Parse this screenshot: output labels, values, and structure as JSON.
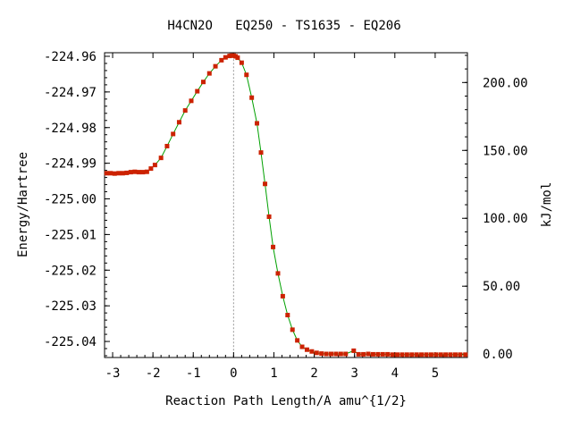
{
  "chart_data": {
    "type": "line",
    "title": "H4CN2O   EQ250 - TS1635 - EQ206",
    "xlabel": "Reaction Path Length/A amu^{1/2}",
    "ylabel": "Energy/Hartree",
    "y2label": "kJ/mol",
    "xlim": [
      -3.2,
      5.8
    ],
    "ylim": [
      -225.0445,
      -224.959
    ],
    "y2lim": [
      -2.52,
      221.93
    ],
    "x_ticks": [
      -3,
      -2,
      -1,
      0,
      1,
      2,
      3,
      4,
      5
    ],
    "x_tick_labels": [
      "-3",
      "-2",
      "-1",
      "0",
      "1",
      "2",
      "3",
      "4",
      "5"
    ],
    "y_ticks": [
      -224.96,
      -224.97,
      -224.98,
      -224.99,
      -225.0,
      -225.01,
      -225.02,
      -225.03,
      -225.04
    ],
    "y_tick_labels": [
      "-224.96",
      "-224.97",
      "-224.98",
      "-224.99",
      "-225.00",
      "-225.01",
      "-225.02",
      "-225.03",
      "-225.04"
    ],
    "y2_ticks": [
      0,
      50,
      100,
      150,
      200
    ],
    "y2_tick_labels": [
      "0.00",
      "50.00",
      "100.00",
      "150.00",
      "200.00"
    ],
    "ts_marker_x": 0.0,
    "grid": false,
    "colors": {
      "line": "#00a000",
      "point": "#cc2200",
      "ts_line": "#999999"
    },
    "series": [
      {
        "x": [
          -3.15,
          -3.05,
          -2.95,
          -2.85,
          -2.75,
          -2.65,
          -2.55,
          -2.45,
          -2.35,
          -2.25,
          -2.15,
          -2.05,
          -1.95,
          -1.8,
          -1.65,
          -1.5,
          -1.35,
          -1.2,
          -1.05,
          -0.9,
          -0.75,
          -0.6,
          -0.45,
          -0.3,
          -0.2,
          -0.1,
          -0.05,
          0.0,
          0.05,
          0.1,
          0.2,
          0.32,
          0.45,
          0.58,
          0.68,
          0.78,
          0.88,
          0.98,
          1.1,
          1.22,
          1.34,
          1.46,
          1.58,
          1.7,
          1.82,
          1.94,
          2.06,
          2.18,
          2.3,
          2.42,
          2.54,
          2.66,
          2.78,
          2.98,
          3.1,
          3.22,
          3.34,
          3.46,
          3.58,
          3.7,
          3.82,
          3.94,
          4.06,
          4.18,
          4.3,
          4.42,
          4.54,
          4.66,
          4.78,
          4.9,
          5.02,
          5.14,
          5.26,
          5.38,
          5.5,
          5.62,
          5.75
        ],
        "y": [
          -224.9928,
          -224.9928,
          -224.9929,
          -224.9928,
          -224.9928,
          -224.9927,
          -224.9925,
          -224.9924,
          -224.9925,
          -224.9925,
          -224.9924,
          -224.9915,
          -224.9905,
          -224.9885,
          -224.9852,
          -224.9818,
          -224.9785,
          -224.9752,
          -224.9725,
          -224.9698,
          -224.9672,
          -224.9648,
          -224.9628,
          -224.9611,
          -224.9603,
          -224.9599,
          -224.9598,
          -224.9598,
          -224.96,
          -224.9604,
          -224.9618,
          -224.9652,
          -224.9716,
          -224.9788,
          -224.987,
          -224.9958,
          -225.005,
          -225.0135,
          -225.0209,
          -225.0273,
          -225.0326,
          -225.0367,
          -225.0397,
          -225.0415,
          -225.0423,
          -225.0428,
          -225.0432,
          -225.0434,
          -225.0435,
          -225.0435,
          -225.0435,
          -225.0435,
          -225.0435,
          -225.0426,
          -225.0436,
          -225.0436,
          -225.0435,
          -225.0436,
          -225.0436,
          -225.0436,
          -225.0436,
          -225.0437,
          -225.0437,
          -225.0437,
          -225.0437,
          -225.0437,
          -225.0437,
          -225.0437,
          -225.0437,
          -225.0437,
          -225.0437,
          -225.0437,
          -225.0437,
          -225.0437,
          -225.0437,
          -225.0437,
          -225.0437
        ]
      }
    ]
  }
}
